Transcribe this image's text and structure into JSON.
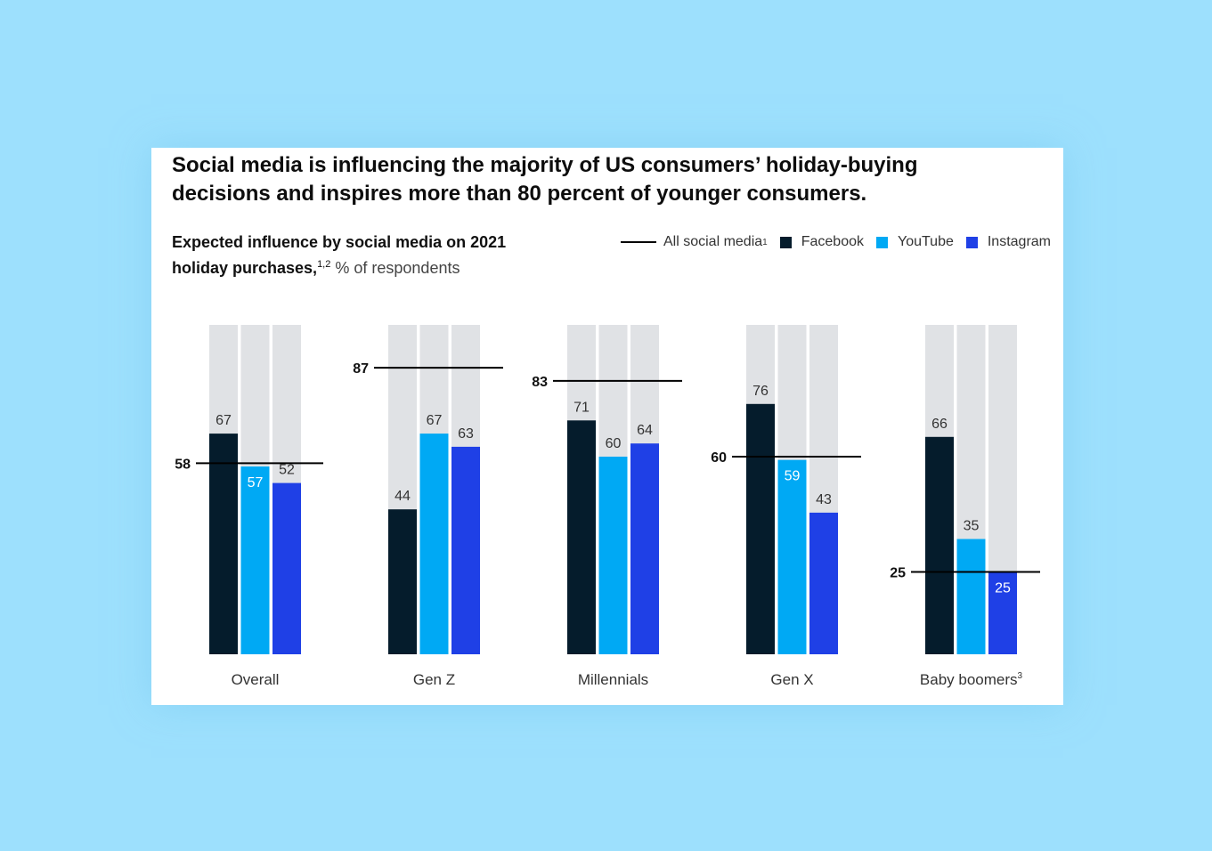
{
  "title_line1": "Social media is influencing the majority of US consumers’ holiday-buying",
  "title_line2": "decisions and inspires more than 80 percent of younger consumers.",
  "subtitle_line1": "Expected influence by social media on 2021",
  "subtitle_line2_bold": "holiday purchases,",
  "subtitle_sup": "1,2",
  "subtitle_unit": "% of respondents",
  "legend": [
    {
      "label": "All social media",
      "sup": "1",
      "type": "line",
      "color": "#000000"
    },
    {
      "label": "Facebook",
      "sup": "",
      "type": "square",
      "color": "#051c2c"
    },
    {
      "label": "YouTube",
      "sup": "",
      "type": "square",
      "color": "#00a9f4"
    },
    {
      "label": "Instagram",
      "sup": "",
      "type": "square",
      "color": "#1f40e6"
    }
  ],
  "chart_data": {
    "type": "bar",
    "categories": [
      "Overall",
      "Gen Z",
      "Millennials",
      "Gen X",
      "Baby boomers"
    ],
    "category_sup": [
      "",
      "",
      "",
      "",
      "3"
    ],
    "series": [
      {
        "name": "Facebook",
        "color": "#051c2c",
        "values": [
          67,
          44,
          71,
          76,
          66
        ]
      },
      {
        "name": "YouTube",
        "color": "#00a9f4",
        "values": [
          57,
          67,
          60,
          59,
          35
        ]
      },
      {
        "name": "Instagram",
        "color": "#1f40e6",
        "values": [
          52,
          63,
          64,
          43,
          25
        ]
      }
    ],
    "reference_line": {
      "name": "All social media",
      "values": [
        58,
        87,
        83,
        60,
        25
      ]
    },
    "ylim": [
      0,
      100
    ],
    "background_bar_color": "#e0e2e5",
    "grid": false,
    "legend_position": "top-right"
  }
}
